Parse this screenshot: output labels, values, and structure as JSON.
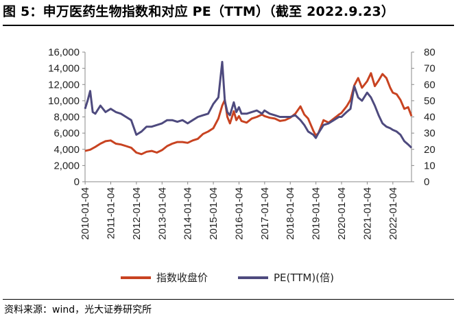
{
  "title": "图 5：申万医药生物指数和对应 PE（TTM）（截至 2022.9.23）",
  "source": "资料来源：wind，光大证券研究所",
  "chart_data": {
    "type": "line",
    "title": "图 5：申万医药生物指数和对应 PE（TTM）（截至 2022.9.23）",
    "xlabel": "",
    "ylabel": "",
    "y_left_lim": [
      0,
      16000
    ],
    "y_right_lim": [
      0,
      80
    ],
    "y_left_ticks": [
      "0",
      "2,000",
      "4,000",
      "6,000",
      "8,000",
      "10,000",
      "12,000",
      "14,000",
      "16,000"
    ],
    "y_right_ticks": [
      "0",
      "10",
      "20",
      "30",
      "40",
      "50",
      "60",
      "70",
      "80"
    ],
    "x_ticks": [
      "2010-01-04",
      "2011-01-04",
      "2012-01-04",
      "2013-01-04",
      "2014-01-04",
      "2015-01-04",
      "2016-01-04",
      "2017-01-04",
      "2018-01-04",
      "2019-01-04",
      "2020-01-04",
      "2021-01-04",
      "2022-01-04"
    ],
    "x_range": [
      2010.0,
      2022.73
    ],
    "grid": false,
    "legend_position": "bottom",
    "series": [
      {
        "name": "指数收盘价",
        "axis": "left",
        "color": "#C84321",
        "x": [
          2010.0,
          2010.2,
          2010.4,
          2010.6,
          2010.8,
          2011.0,
          2011.2,
          2011.4,
          2011.6,
          2011.8,
          2012.0,
          2012.2,
          2012.4,
          2012.6,
          2012.8,
          2013.0,
          2013.2,
          2013.4,
          2013.6,
          2013.8,
          2014.0,
          2014.2,
          2014.4,
          2014.6,
          2014.8,
          2015.0,
          2015.2,
          2015.35,
          2015.45,
          2015.55,
          2015.65,
          2015.8,
          2015.9,
          2016.0,
          2016.1,
          2016.3,
          2016.5,
          2016.7,
          2016.9,
          2017.0,
          2017.2,
          2017.4,
          2017.6,
          2017.8,
          2018.0,
          2018.2,
          2018.4,
          2018.55,
          2018.7,
          2018.9,
          2019.0,
          2019.1,
          2019.3,
          2019.5,
          2019.7,
          2019.9,
          2020.0,
          2020.2,
          2020.35,
          2020.5,
          2020.65,
          2020.8,
          2021.0,
          2021.15,
          2021.3,
          2021.45,
          2021.6,
          2021.75,
          2021.9,
          2022.0,
          2022.15,
          2022.3,
          2022.45,
          2022.6,
          2022.73
        ],
        "values": [
          3800,
          3950,
          4300,
          4700,
          5000,
          5100,
          4700,
          4600,
          4400,
          4200,
          3600,
          3400,
          3700,
          3800,
          3600,
          3900,
          4400,
          4700,
          4900,
          4900,
          4800,
          5100,
          5300,
          5900,
          6200,
          6600,
          7800,
          9400,
          10100,
          8000,
          7200,
          8700,
          7600,
          8100,
          7500,
          7300,
          7800,
          8000,
          8300,
          8100,
          7900,
          7800,
          7500,
          7600,
          7900,
          8400,
          9300,
          8300,
          7800,
          6300,
          5700,
          6000,
          7600,
          7300,
          7800,
          8300,
          8500,
          9300,
          10100,
          11900,
          12800,
          11600,
          12400,
          13400,
          11800,
          12500,
          13300,
          12800,
          11600,
          11000,
          10800,
          10100,
          9000,
          9200,
          8100
        ]
      },
      {
        "name": "PE(TTM)(倍)",
        "axis": "right",
        "color": "#4E4A7E",
        "x": [
          2010.0,
          2010.1,
          2010.2,
          2010.3,
          2010.4,
          2010.6,
          2010.8,
          2011.0,
          2011.2,
          2011.4,
          2011.6,
          2011.8,
          2012.0,
          2012.2,
          2012.4,
          2012.6,
          2012.8,
          2013.0,
          2013.2,
          2013.4,
          2013.6,
          2013.8,
          2014.0,
          2014.2,
          2014.4,
          2014.6,
          2014.8,
          2015.0,
          2015.2,
          2015.35,
          2015.45,
          2015.55,
          2015.65,
          2015.8,
          2015.9,
          2016.0,
          2016.1,
          2016.3,
          2016.5,
          2016.7,
          2016.9,
          2017.0,
          2017.2,
          2017.4,
          2017.6,
          2017.8,
          2018.0,
          2018.2,
          2018.4,
          2018.55,
          2018.7,
          2018.9,
          2019.0,
          2019.1,
          2019.3,
          2019.5,
          2019.7,
          2019.9,
          2020.0,
          2020.2,
          2020.35,
          2020.5,
          2020.65,
          2020.8,
          2021.0,
          2021.15,
          2021.3,
          2021.45,
          2021.6,
          2021.75,
          2021.9,
          2022.0,
          2022.15,
          2022.3,
          2022.45,
          2022.6,
          2022.73
        ],
        "values": [
          45,
          50,
          56,
          43,
          42,
          47,
          43,
          45,
          43,
          42,
          40,
          38,
          29,
          31,
          34,
          34,
          35,
          36,
          38,
          38,
          37,
          38,
          36,
          38,
          40,
          41,
          42,
          48,
          52,
          74,
          50,
          43,
          41,
          49,
          43,
          46,
          42,
          42,
          43,
          44,
          42,
          44,
          42,
          41,
          40,
          40,
          40,
          41,
          38,
          35,
          31,
          29,
          27,
          30,
          35,
          36,
          38,
          40,
          40,
          43,
          45,
          59,
          52,
          50,
          55,
          52,
          47,
          41,
          36,
          34,
          33,
          32,
          31,
          29,
          25,
          23,
          21
        ]
      }
    ]
  }
}
